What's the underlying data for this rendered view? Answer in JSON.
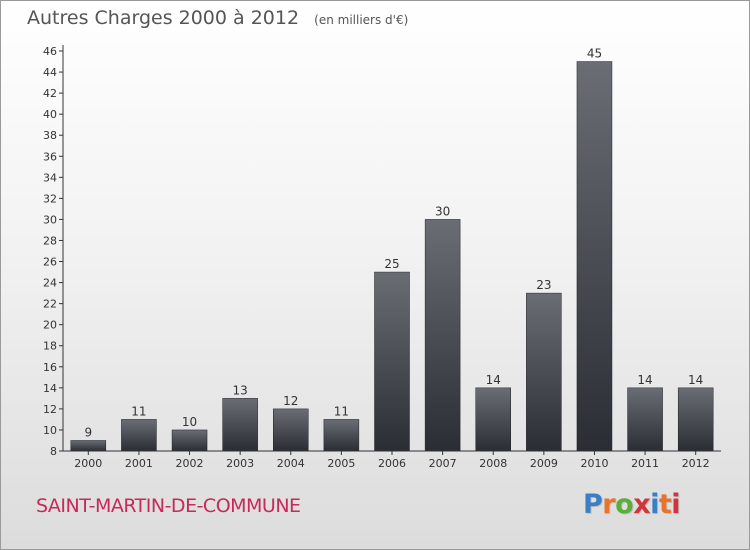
{
  "header": {
    "title": "Autres Charges 2000 à 2012",
    "subtitle": "(en milliers d'€)"
  },
  "footer": {
    "commune": "SAINT-MARTIN-DE-COMMUNE",
    "logo": "Proxiti",
    "logo_colors": [
      "#3a7fc4",
      "#e8732a",
      "#5aae3a",
      "#d2343c",
      "#3a7fc4",
      "#e8732a",
      "#d2343c"
    ]
  },
  "colors": {
    "bar_top": "#6a6e74",
    "bar_bottom": "#2a2e34",
    "axis": "#333333",
    "grid": "#c8c8c8",
    "text": "#333333"
  },
  "chart_data": {
    "type": "bar",
    "categories": [
      "2000",
      "2001",
      "2002",
      "2003",
      "2004",
      "2005",
      "2006",
      "2007",
      "2008",
      "2009",
      "2010",
      "2011",
      "2012"
    ],
    "values": [
      9,
      11,
      10,
      13,
      12,
      11,
      25,
      30,
      14,
      23,
      45,
      14,
      14
    ],
    "ylim": [
      8,
      46
    ],
    "yticks": [
      8,
      10,
      12,
      14,
      16,
      18,
      20,
      22,
      24,
      26,
      28,
      30,
      32,
      34,
      36,
      38,
      40,
      42,
      44,
      46
    ],
    "grid": true,
    "legend": "none"
  }
}
